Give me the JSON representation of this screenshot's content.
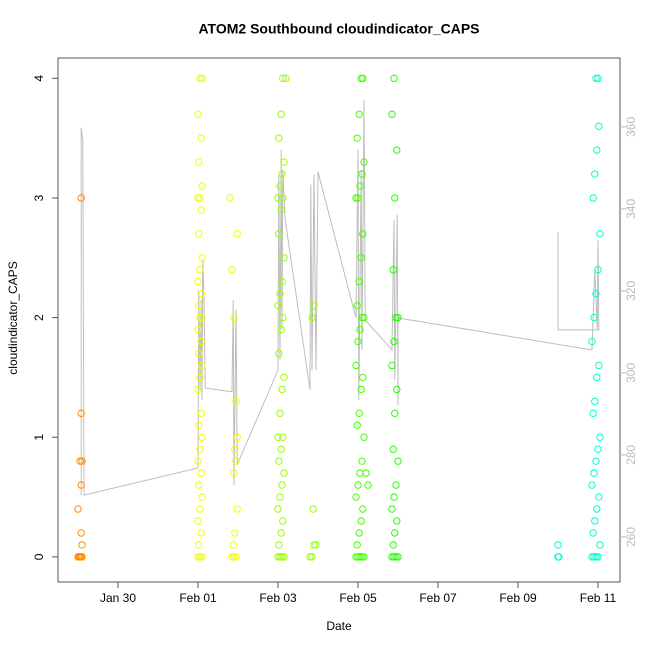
{
  "chart_data": {
    "type": "scatter",
    "title": "ATOM2 Southbound cloudindicator_CAPS",
    "x_label": "Date",
    "y_label": "cloudindicator_CAPS",
    "xlim": [
      28.5,
      42.55
    ],
    "xticks": [
      {
        "value": 30,
        "label": "Jan 30"
      },
      {
        "value": 32,
        "label": "Feb 01"
      },
      {
        "value": 34,
        "label": "Feb 03"
      },
      {
        "value": 36,
        "label": "Feb 05"
      },
      {
        "value": 38,
        "label": "Feb 07"
      },
      {
        "value": 40,
        "label": "Feb 09"
      },
      {
        "value": 42,
        "label": "Feb 11"
      }
    ],
    "ylim": [
      -0.21,
      4.17
    ],
    "yticks": [
      0,
      1,
      2,
      3,
      4
    ],
    "y2lim": [
      249,
      376.8
    ],
    "y2ticks": [
      260,
      280,
      300,
      320,
      340,
      360
    ],
    "series": [
      {
        "color": "#bdbdbd",
        "axis": "y2",
        "x": [
          29.08,
          29.08,
          29.12,
          29.15,
          32.0,
          32.02,
          32.05,
          32.08,
          32.1,
          32.12,
          32.15,
          32.18,
          32.85,
          32.88,
          32.9,
          32.95,
          32.98,
          34.0,
          34.02,
          34.05,
          34.08,
          34.1,
          34.12,
          34.18,
          34.8,
          34.82,
          34.85,
          34.9,
          34.95,
          35.0,
          35.95,
          36.0,
          36.02,
          36.08,
          36.1,
          36.15,
          36.18,
          36.85,
          36.9,
          36.92,
          36.98,
          37.0,
          37.0,
          41.85,
          41.92,
          41.98,
          42.0,
          42.02,
          41.0,
          41.0
        ],
        "values": [
          270.2,
          359.8,
          356.8,
          270.2,
          276.8,
          320.2,
          295.9,
          317.8,
          293.4,
          327.6,
          318.5,
          296.3,
          295.4,
          317.8,
          272.7,
          315.4,
          277.6,
          300.7,
          348.3,
          303.2,
          354.4,
          310.5,
          349.5,
          337.3,
          295.9,
          345.9,
          300.7,
          348.3,
          300.7,
          349.0,
          313.4,
          354.4,
          293.4,
          349.5,
          305.6,
          366.6,
          312.9,
          305.6,
          337.3,
          298.3,
          338.5,
          292.2,
          313.4,
          305.6,
          325.1,
          310.5,
          332.4,
          310.5,
          310.5,
          334.4
        ]
      },
      {
        "color": "#ff8c00",
        "x": [
          29.0,
          29.03,
          29.05,
          29.08,
          29.1,
          29.1,
          29.08,
          29.0,
          29.08,
          29.05,
          29.1,
          29.08,
          29.08
        ],
        "values": [
          0,
          0,
          0,
          0,
          0,
          0.1,
          0.2,
          0.4,
          0.6,
          0.8,
          0.8,
          1.2,
          3.0
        ]
      },
      {
        "color": "#eeff00",
        "x": [
          32.0,
          32.05,
          32.1,
          32.02,
          32.08,
          32.0,
          32.05,
          32.1,
          32.02,
          32.08,
          32.0,
          32.05,
          32.1,
          32.02,
          32.08,
          32.0,
          32.05,
          32.1,
          32.02,
          32.08,
          32.0,
          32.05,
          32.1,
          32.02,
          32.08,
          32.0,
          32.05,
          32.1,
          32.02,
          32.08,
          32.0,
          32.05,
          32.1,
          32.02,
          32.08,
          32.0,
          32.05,
          32.1,
          32.85,
          32.9,
          32.95,
          32.88,
          32.92,
          32.98,
          32.9,
          32.95,
          32.92,
          32.98,
          32.95,
          32.9,
          32.85,
          32.98,
          32.8
        ],
        "values": [
          0,
          0,
          0,
          0.1,
          0.2,
          0.3,
          0.4,
          0.5,
          0.6,
          0.7,
          0.8,
          0.9,
          1.0,
          1.1,
          1.2,
          1.4,
          1.5,
          1.6,
          1.7,
          1.8,
          1.9,
          2.0,
          2.0,
          2.1,
          2.2,
          2.3,
          2.4,
          2.5,
          2.7,
          2.9,
          3.0,
          3.0,
          3.1,
          3.3,
          3.5,
          3.7,
          4.0,
          4.0,
          0,
          0,
          0,
          0.1,
          0.2,
          0.4,
          0.7,
          0.8,
          0.9,
          1.0,
          1.3,
          2.0,
          2.4,
          2.7,
          3.0
        ]
      },
      {
        "color": "#99ff00",
        "x": [
          34.0,
          34.05,
          34.1,
          34.15,
          34.02,
          34.08,
          34.12,
          34.0,
          34.05,
          34.1,
          34.15,
          34.02,
          34.08,
          34.12,
          34.0,
          34.05,
          34.1,
          34.15,
          34.02,
          34.08,
          34.12,
          34.0,
          34.05,
          34.1,
          34.15,
          34.02,
          34.08,
          34.12,
          34.0,
          34.05,
          34.1,
          34.15,
          34.02,
          34.08,
          34.12,
          34.2,
          34.8,
          34.85,
          34.9,
          34.95,
          34.88,
          34.85,
          34.9
        ],
        "values": [
          0,
          0,
          0,
          0,
          0.1,
          0.2,
          0.3,
          0.4,
          0.5,
          0.6,
          0.7,
          0.8,
          0.9,
          1.0,
          1.0,
          1.2,
          1.4,
          1.5,
          1.7,
          1.9,
          2.0,
          2.1,
          2.2,
          2.3,
          2.5,
          2.7,
          2.9,
          3.0,
          3.0,
          3.1,
          3.2,
          3.3,
          3.5,
          3.7,
          4.0,
          4.0,
          0,
          0,
          0.1,
          0.1,
          0.4,
          2.0,
          2.1
        ]
      },
      {
        "color": "#44ff00",
        "x": [
          35.95,
          36.0,
          36.05,
          36.1,
          36.15,
          35.98,
          36.03,
          36.08,
          36.12,
          35.95,
          36.0,
          36.05,
          36.1,
          36.15,
          35.98,
          36.03,
          36.08,
          36.12,
          35.95,
          36.0,
          36.05,
          36.1,
          36.15,
          35.98,
          36.03,
          36.08,
          36.12,
          35.95,
          36.0,
          36.05,
          36.1,
          36.15,
          35.98,
          36.03,
          36.08,
          36.12,
          36.2,
          36.25
        ],
        "values": [
          0,
          0,
          0,
          0,
          0,
          0.1,
          0.2,
          0.3,
          0.4,
          0.5,
          0.6,
          0.7,
          0.8,
          1.0,
          1.1,
          1.2,
          1.4,
          1.5,
          1.6,
          1.8,
          1.9,
          2.0,
          2.0,
          2.1,
          2.3,
          2.5,
          2.7,
          3.0,
          3.0,
          3.1,
          3.2,
          3.3,
          3.5,
          3.7,
          4.0,
          4.0,
          0.7,
          0.6
        ]
      },
      {
        "color": "#22ff00",
        "x": [
          36.85,
          36.9,
          36.95,
          37.0,
          36.88,
          36.92,
          36.97,
          36.85,
          36.9,
          36.95,
          37.0,
          36.88,
          36.92,
          36.97,
          36.85,
          36.9,
          36.95,
          37.0,
          36.88,
          36.92,
          36.97,
          36.85,
          36.9
        ],
        "values": [
          0,
          0,
          0,
          0,
          0.1,
          0.2,
          0.3,
          0.4,
          0.5,
          0.6,
          0.8,
          0.9,
          1.2,
          1.4,
          1.6,
          1.8,
          2.0,
          2.0,
          2.4,
          3.0,
          3.4,
          3.7,
          4.0
        ]
      },
      {
        "color": "#00ffcc",
        "x": [
          41.0,
          41.02,
          41.0,
          41.85,
          41.9,
          41.95,
          42.0,
          42.05,
          41.88,
          41.92,
          41.97,
          42.02,
          41.85,
          41.9,
          41.95,
          42.0,
          42.05,
          41.88,
          41.92,
          41.97,
          42.02,
          41.85,
          41.9,
          41.95,
          42.0,
          42.05,
          41.88,
          41.92,
          41.97,
          42.02,
          41.95,
          42.0
        ],
        "values": [
          0,
          0,
          0.1,
          0,
          0,
          0,
          0,
          0.1,
          0.2,
          0.3,
          0.4,
          0.5,
          0.6,
          0.7,
          0.8,
          0.9,
          1.0,
          1.2,
          1.3,
          1.5,
          1.6,
          1.8,
          2.0,
          2.2,
          2.4,
          2.7,
          3.0,
          3.2,
          3.4,
          3.6,
          4.0,
          4.0
        ]
      }
    ]
  }
}
